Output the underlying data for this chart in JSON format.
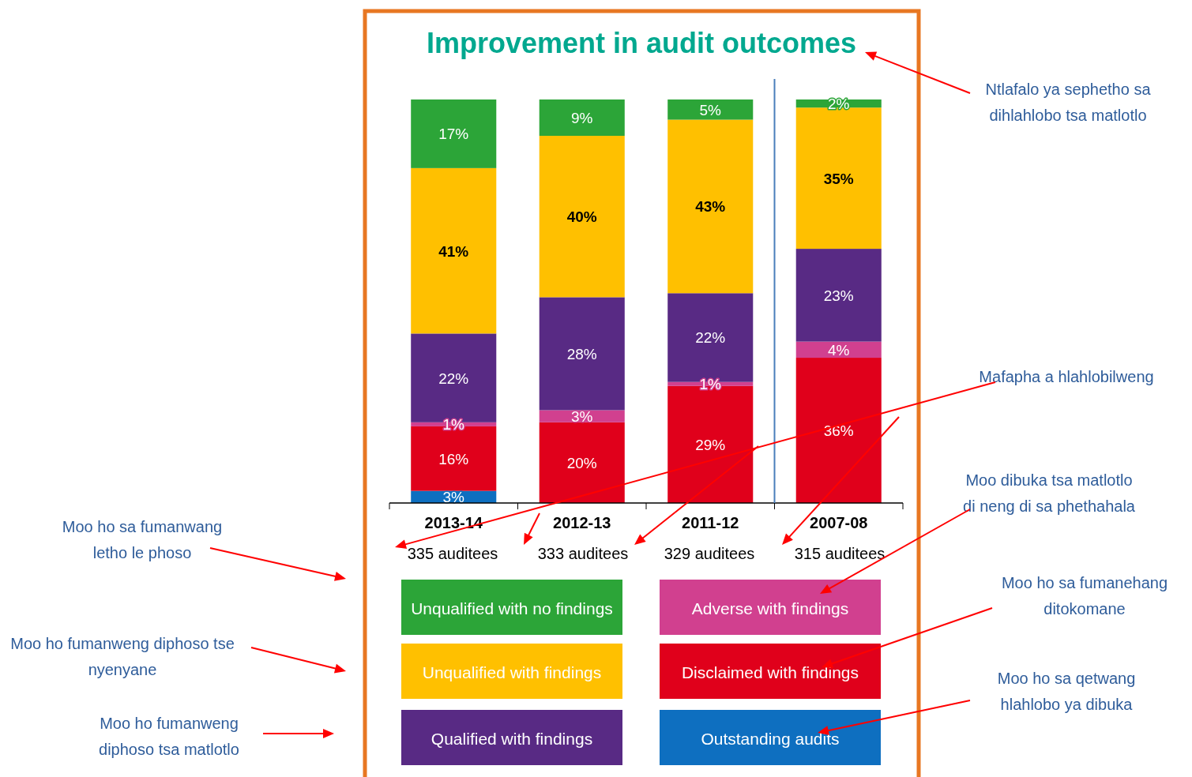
{
  "chart_data": {
    "type": "bar",
    "title": "Improvement in audit outcomes",
    "stacked": true,
    "categories": [
      "2013-14",
      "2012-13",
      "2011-12",
      "2007-08"
    ],
    "series": [
      {
        "name": "Outstanding audits",
        "color": "#0e6fc0",
        "values": [
          3,
          0,
          0,
          0
        ],
        "value_labels": [
          "3%",
          null,
          null,
          null
        ]
      },
      {
        "name": "Disclaimed with findings",
        "color": "#e0001b",
        "values": [
          16,
          20,
          29,
          36
        ],
        "value_labels": [
          "16%",
          "20%",
          "29%",
          "36%"
        ]
      },
      {
        "name": "Adverse with findings",
        "color": "#d1408f",
        "values": [
          1,
          3,
          1,
          4
        ],
        "value_labels": [
          "1%",
          "3%",
          "1%",
          "4%"
        ]
      },
      {
        "name": "Qualified with findings",
        "color": "#582a84",
        "values": [
          22,
          28,
          22,
          23
        ],
        "value_labels": [
          "22%",
          "28%",
          "22%",
          "23%"
        ]
      },
      {
        "name": "Unqualified with findings",
        "color": "#ffc000",
        "values": [
          41,
          40,
          43,
          35
        ],
        "value_labels": [
          "41%",
          "40%",
          "43%",
          "35%"
        ]
      },
      {
        "name": "Unqualified with no findings",
        "color": "#2ca538",
        "values": [
          17,
          9,
          5,
          2
        ],
        "value_labels": [
          "17%",
          "9%",
          "5%",
          "2%"
        ]
      }
    ],
    "ylim": [
      0,
      100
    ],
    "tick_labels": "x",
    "legend": "bottom",
    "ref_lines": [
      {
        "axis": "x",
        "value": "2007-08",
        "color": "#4a7ebb"
      }
    ],
    "annotations": [
      "335 auditees",
      "333 auditees",
      "329 auditees",
      "315 auditees",
      "Ntlafalo ya sephetho sa\ndihlahlobo tsa matlotlo",
      "Mafapha a hlahlobilweng",
      "Moo dibuka tsa matlotlo\ndi neng di sa phethahala",
      "Moo ho sa fumanehang\nditokomane",
      "Moo ho sa qetwang\nhlahlobo ya dibuka",
      "Moo ho sa fumanwang\nletho le phoso",
      "Moo ho fumanweng diphoso tse\nnyenyane",
      "Moo ho fumanweng\ndiphoso tsa matlotlo"
    ]
  }
}
